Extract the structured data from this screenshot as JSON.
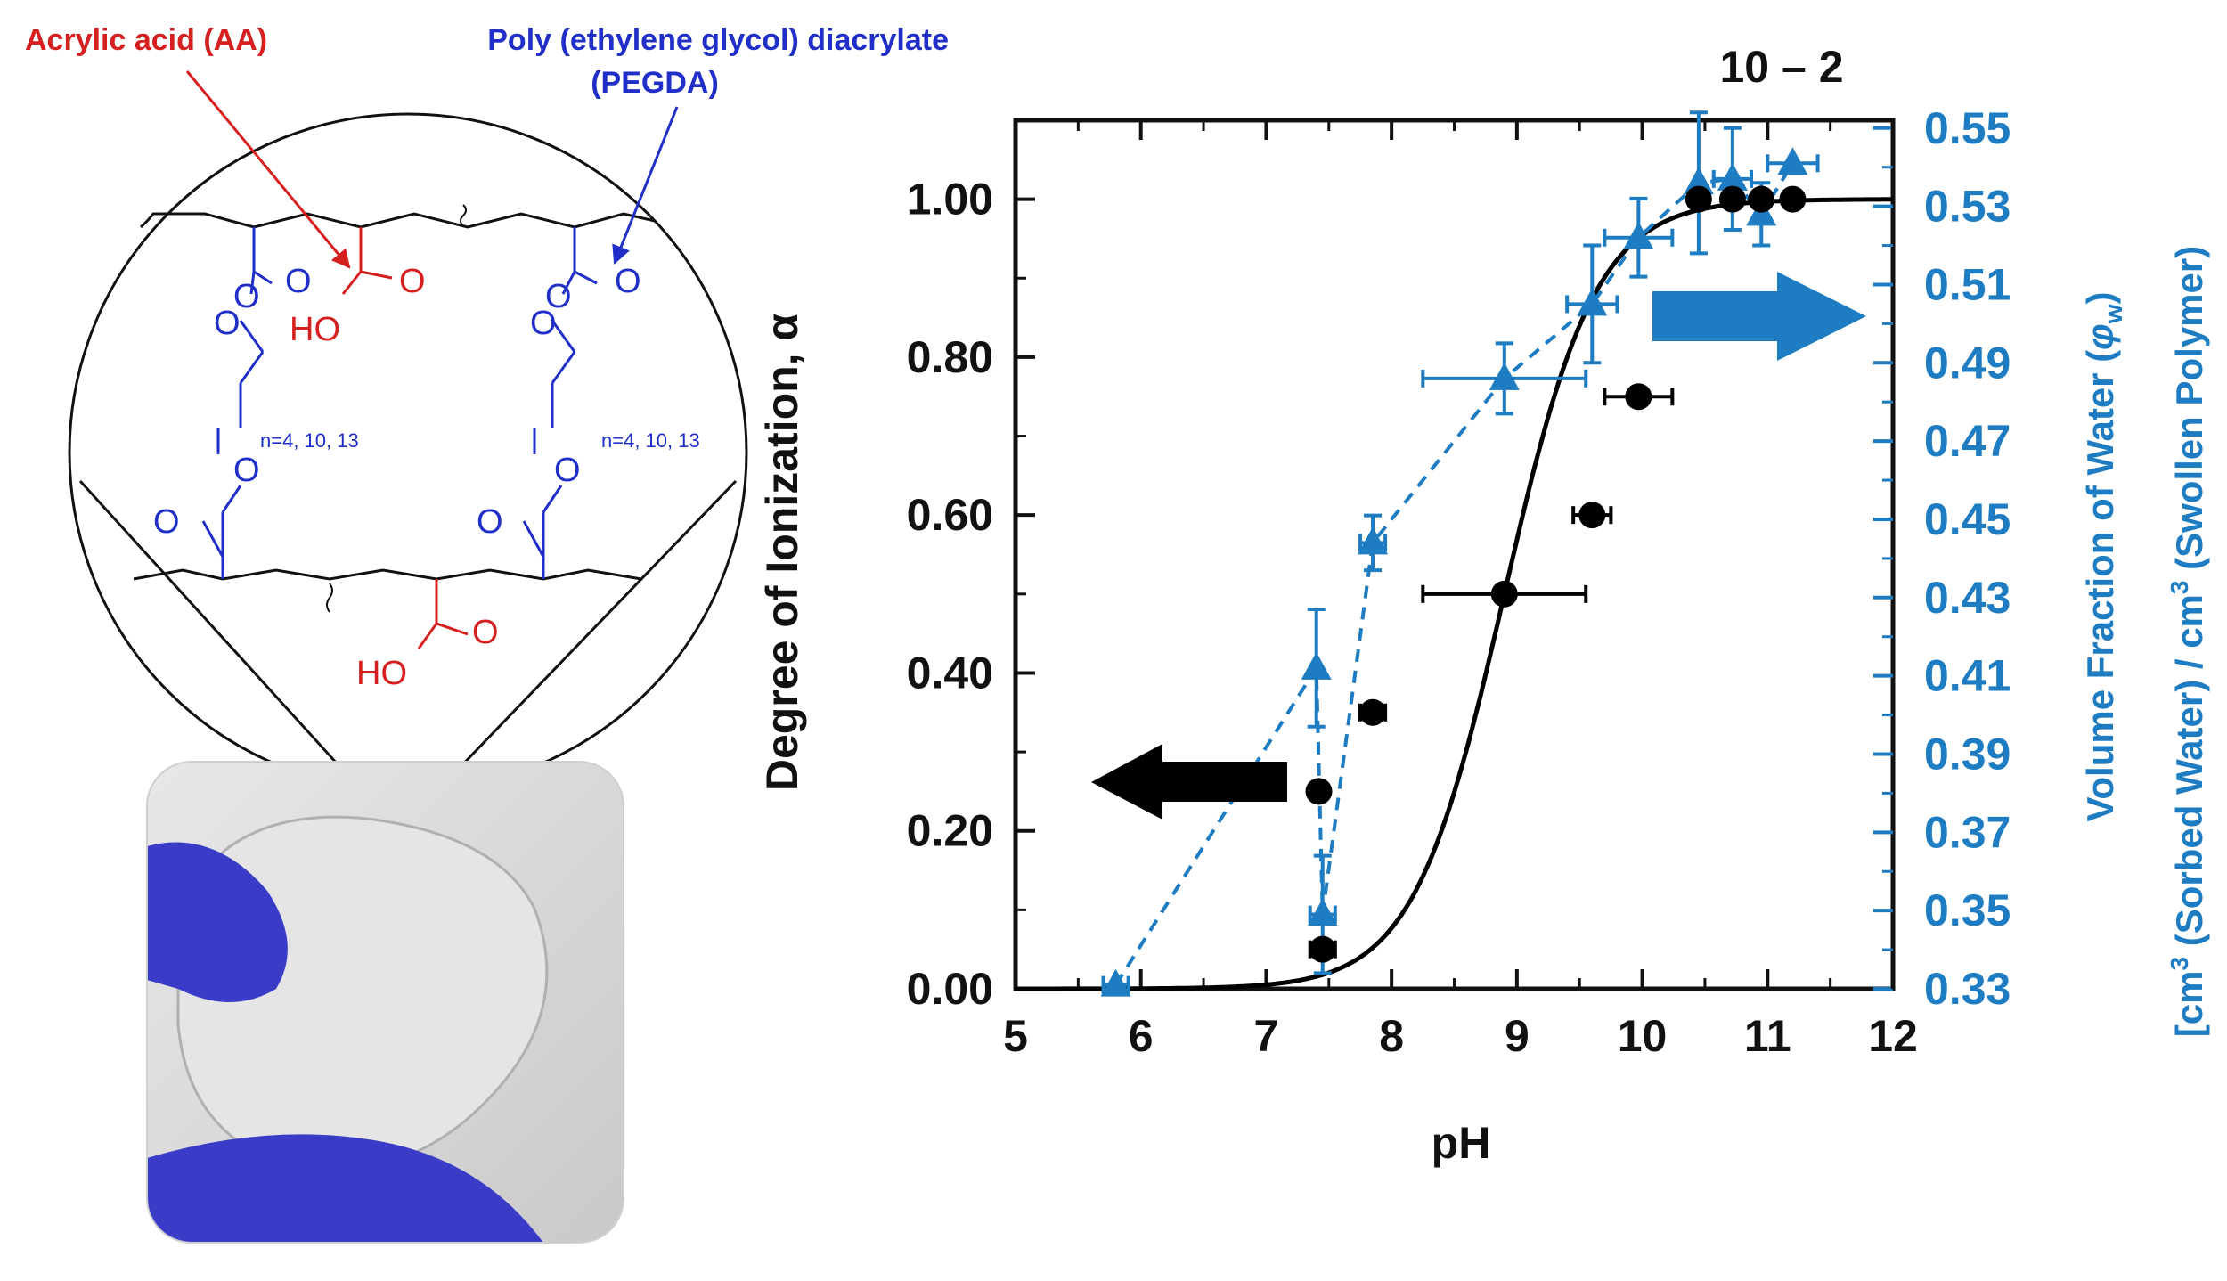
{
  "structure": {
    "aa_label": "Acrylic acid (AA)",
    "pegda_label_line1": "Poly (ethylene glycol) diacrylate",
    "pegda_label_line2": "(PEGDA)",
    "o_atom": "O",
    "ho_group": "HO",
    "repeat_label": "n=4, 10, 13",
    "colors": {
      "aa": "#d62020",
      "pegda": "#1f2fc8",
      "backbone": "#111111"
    }
  },
  "photo": {
    "glove_color": "#3a3cc8",
    "background": "#dcdcdc"
  },
  "chart_data": {
    "type": "scatter",
    "title": "10 – 2",
    "xlabel": "pH",
    "ylabel": "Degree of Ionization, α",
    "y2label_line1": "Volume Fraction of Water (φw)",
    "y2label_line1_main": "Volume Fraction of Water (",
    "y2label_line1_phi": "φ",
    "y2label_line1_sub": "w",
    "y2label_line1_close": ")",
    "y2label_line2": "[cm³ (Sorbed Water) / cm³ (Swollen Polymer)",
    "y2label_line2_a": "[cm",
    "y2label_line2_b": " (Sorbed Water) / cm",
    "y2label_line2_c": " (Swollen Polymer)",
    "y2label_sup": "3",
    "xlim": [
      5,
      12
    ],
    "ylim": [
      0,
      1.1
    ],
    "y2lim": [
      0.33,
      0.552
    ],
    "x_ticks": [
      "5",
      "6",
      "7",
      "8",
      "9",
      "10",
      "11",
      "12"
    ],
    "y_ticks": [
      "0.00",
      "0.20",
      "0.40",
      "0.60",
      "0.80",
      "1.00"
    ],
    "y2_ticks": [
      "0.33",
      "0.35",
      "0.37",
      "0.39",
      "0.41",
      "0.43",
      "0.45",
      "0.47",
      "0.49",
      "0.51",
      "0.53",
      "0.55"
    ],
    "series": [
      {
        "name": "Degree of ionization (left axis)",
        "axis": "left",
        "color": "#000000",
        "marker": "circle",
        "points": [
          {
            "x": 7.45,
            "y": 0.05,
            "xerr": 0.1
          },
          {
            "x": 7.42,
            "y": 0.25,
            "xerr": 0.0
          },
          {
            "x": 7.85,
            "y": 0.35,
            "xerr": 0.1
          },
          {
            "x": 8.9,
            "y": 0.5,
            "xerr": 0.65
          },
          {
            "x": 9.6,
            "y": 0.6,
            "xerr": 0.15
          },
          {
            "x": 9.97,
            "y": 0.75,
            "xerr": 0.27
          },
          {
            "x": 10.45,
            "y": 1.0,
            "xerr": 0.0
          },
          {
            "x": 10.72,
            "y": 1.0,
            "xerr": 0.0
          },
          {
            "x": 10.95,
            "y": 1.0,
            "xerr": 0.0
          },
          {
            "x": 11.2,
            "y": 1.0,
            "xerr": 0.0
          }
        ]
      },
      {
        "name": "Volume fraction of water (right axis)",
        "axis": "right",
        "color": "#1e7cc2",
        "marker": "triangle",
        "line": "dashed",
        "points": [
          {
            "x": 5.8,
            "y": 0.331,
            "xerr": 0.1,
            "yerr": 0.0
          },
          {
            "x": 7.45,
            "y": 0.349,
            "xerr": 0.1,
            "yerr": 0.015
          },
          {
            "x": 7.4,
            "y": 0.412,
            "xerr": 0.0,
            "yerr": 0.015
          },
          {
            "x": 7.85,
            "y": 0.444,
            "xerr": 0.1,
            "yerr": 0.007
          },
          {
            "x": 8.9,
            "y": 0.486,
            "xerr": 0.65,
            "yerr": 0.009
          },
          {
            "x": 9.6,
            "y": 0.505,
            "xerr": 0.2,
            "yerr": 0.015
          },
          {
            "x": 9.97,
            "y": 0.522,
            "xerr": 0.27,
            "yerr": 0.01
          },
          {
            "x": 10.45,
            "y": 0.536,
            "xerr": 0.0,
            "yerr": 0.018
          },
          {
            "x": 10.72,
            "y": 0.537,
            "xerr": 0.15,
            "yerr": 0.013
          },
          {
            "x": 10.95,
            "y": 0.528,
            "xerr": 0.0,
            "yerr": 0.008
          },
          {
            "x": 11.2,
            "y": 0.541,
            "xerr": 0.2,
            "yerr": 0.0
          }
        ]
      }
    ],
    "fit_curve": {
      "name": "sigmoid fit",
      "color": "#000000",
      "pKa": 8.9,
      "slope": 1.2
    },
    "annotations": [
      {
        "type": "arrow",
        "direction": "left",
        "color": "#000000",
        "meaning": "left axis"
      },
      {
        "type": "arrow",
        "direction": "right",
        "color": "#1e7cc2",
        "meaning": "right axis"
      }
    ]
  }
}
